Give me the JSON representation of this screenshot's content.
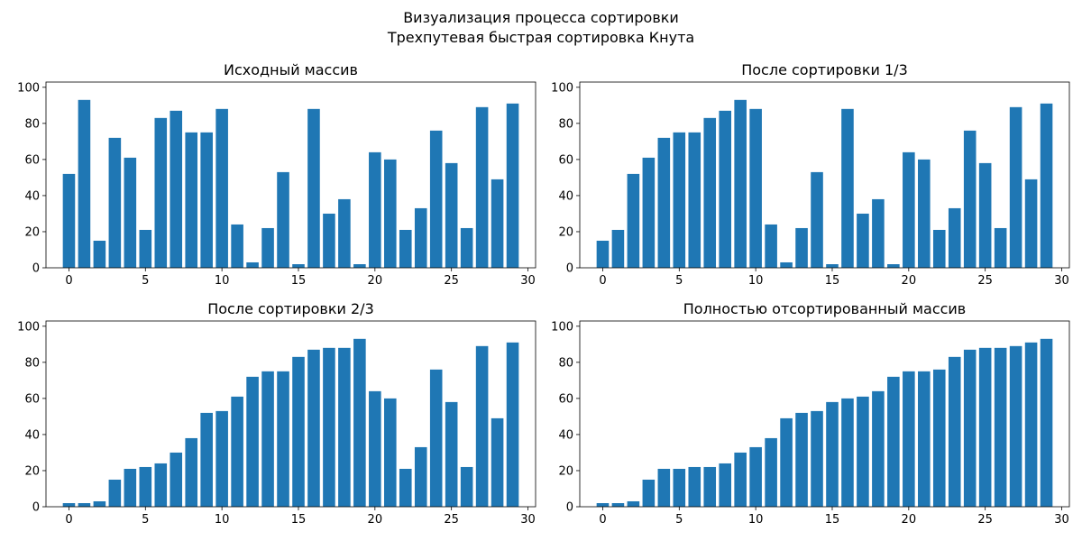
{
  "figure": {
    "suptitle_line1": "Визуализация процесса сортировки",
    "suptitle_line2": "Трехпутевая быстрая сортировка Кнута"
  },
  "chart_data": [
    {
      "type": "bar",
      "title": "Исходный массив",
      "x": [
        0,
        1,
        2,
        3,
        4,
        5,
        6,
        7,
        8,
        9,
        10,
        11,
        12,
        13,
        14,
        15,
        16,
        17,
        18,
        19,
        20,
        21,
        22,
        23,
        24,
        25,
        26,
        27,
        28,
        29
      ],
      "values": [
        52,
        93,
        15,
        72,
        61,
        21,
        83,
        87,
        75,
        75,
        88,
        24,
        3,
        22,
        53,
        2,
        88,
        30,
        38,
        2,
        64,
        60,
        21,
        33,
        76,
        58,
        22,
        89,
        49,
        91
      ],
      "xticks": [
        0,
        5,
        10,
        15,
        20,
        25,
        30
      ],
      "yticks": [
        0,
        20,
        40,
        60,
        80,
        100
      ],
      "xlim": [
        -1.5,
        30.5
      ],
      "ylim": [
        0,
        102.9
      ],
      "color": "#1f77b4",
      "grid": false
    },
    {
      "type": "bar",
      "title": "После сортировки 1/3",
      "x": [
        0,
        1,
        2,
        3,
        4,
        5,
        6,
        7,
        8,
        9,
        10,
        11,
        12,
        13,
        14,
        15,
        16,
        17,
        18,
        19,
        20,
        21,
        22,
        23,
        24,
        25,
        26,
        27,
        28,
        29
      ],
      "values": [
        15,
        21,
        52,
        61,
        72,
        75,
        75,
        83,
        87,
        93,
        88,
        24,
        3,
        22,
        53,
        2,
        88,
        30,
        38,
        2,
        64,
        60,
        21,
        33,
        76,
        58,
        22,
        89,
        49,
        91
      ],
      "xticks": [
        0,
        5,
        10,
        15,
        20,
        25,
        30
      ],
      "yticks": [
        0,
        20,
        40,
        60,
        80,
        100
      ],
      "xlim": [
        -1.5,
        30.5
      ],
      "ylim": [
        0,
        102.9
      ],
      "color": "#1f77b4",
      "grid": false
    },
    {
      "type": "bar",
      "title": "После сортировки 2/3",
      "x": [
        0,
        1,
        2,
        3,
        4,
        5,
        6,
        7,
        8,
        9,
        10,
        11,
        12,
        13,
        14,
        15,
        16,
        17,
        18,
        19,
        20,
        21,
        22,
        23,
        24,
        25,
        26,
        27,
        28,
        29
      ],
      "values": [
        2,
        2,
        3,
        15,
        21,
        22,
        24,
        30,
        38,
        52,
        53,
        61,
        72,
        75,
        75,
        83,
        87,
        88,
        88,
        93,
        64,
        60,
        21,
        33,
        76,
        58,
        22,
        89,
        49,
        91
      ],
      "xticks": [
        0,
        5,
        10,
        15,
        20,
        25,
        30
      ],
      "yticks": [
        0,
        20,
        40,
        60,
        80,
        100
      ],
      "xlim": [
        -1.5,
        30.5
      ],
      "ylim": [
        0,
        102.9
      ],
      "color": "#1f77b4",
      "grid": false
    },
    {
      "type": "bar",
      "title": "Полностью отсортированный массив",
      "x": [
        0,
        1,
        2,
        3,
        4,
        5,
        6,
        7,
        8,
        9,
        10,
        11,
        12,
        13,
        14,
        15,
        16,
        17,
        18,
        19,
        20,
        21,
        22,
        23,
        24,
        25,
        26,
        27,
        28,
        29
      ],
      "values": [
        2,
        2,
        3,
        15,
        21,
        21,
        22,
        22,
        24,
        30,
        33,
        38,
        49,
        52,
        53,
        58,
        60,
        61,
        64,
        72,
        75,
        75,
        76,
        83,
        87,
        88,
        88,
        89,
        91,
        93
      ],
      "xticks": [
        0,
        5,
        10,
        15,
        20,
        25,
        30
      ],
      "yticks": [
        0,
        20,
        40,
        60,
        80,
        100
      ],
      "xlim": [
        -1.5,
        30.5
      ],
      "ylim": [
        0,
        102.9
      ],
      "color": "#1f77b4",
      "grid": false
    }
  ]
}
